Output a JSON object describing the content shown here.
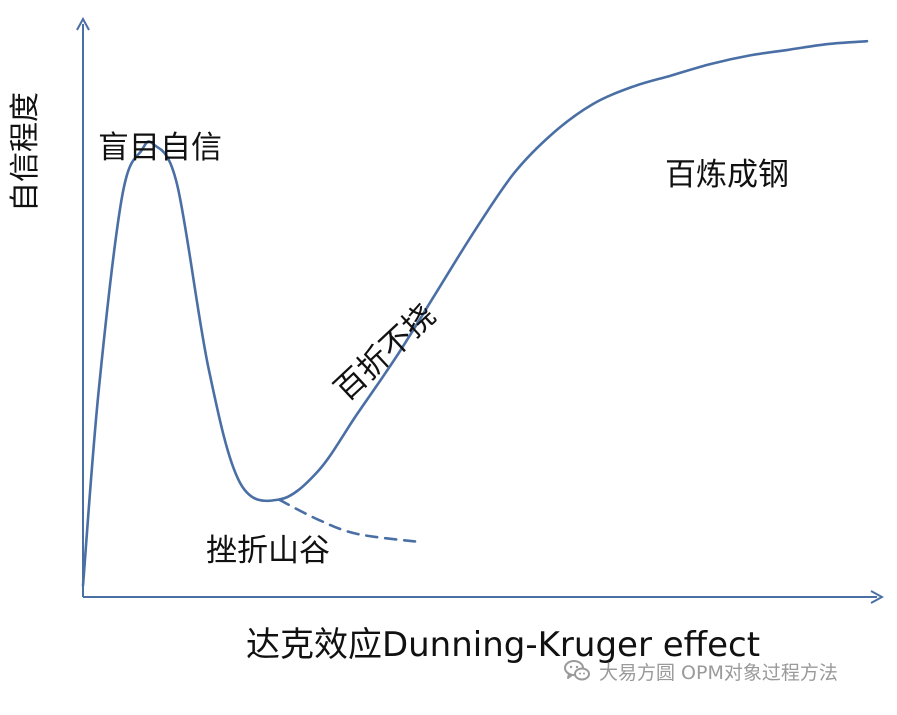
{
  "chart_data": {
    "type": "line",
    "title": "达克效应Dunning-Kruger effect",
    "ylabel": "自信程度",
    "xlabel": "",
    "grid": false,
    "annotations": {
      "peak": "盲目自信",
      "valley": "挫折山谷",
      "climb": "百折不挠",
      "plateau": "百炼成钢"
    },
    "series": [
      {
        "style": "solid",
        "color": "#4a6fa5",
        "x": [
          0,
          0.02,
          0.05,
          0.075,
          0.09,
          0.12,
          0.16,
          0.2,
          0.25,
          0.3,
          0.35,
          0.4,
          0.45,
          0.5,
          0.55,
          0.6,
          0.65,
          0.7,
          0.75,
          0.8,
          0.85,
          0.9,
          0.95,
          1.0
        ],
        "y": [
          0.02,
          0.36,
          0.7,
          0.78,
          0.79,
          0.72,
          0.4,
          0.2,
          0.17,
          0.22,
          0.32,
          0.42,
          0.53,
          0.64,
          0.74,
          0.81,
          0.86,
          0.89,
          0.91,
          0.93,
          0.945,
          0.955,
          0.965,
          0.97
        ]
      },
      {
        "style": "dashed",
        "color": "#4a6fa5",
        "x": [
          0.25,
          0.3,
          0.35,
          0.43
        ],
        "y": [
          0.17,
          0.135,
          0.11,
          0.096
        ]
      }
    ]
  },
  "watermark": {
    "icon": "wechat-icon",
    "text": "大易方圆 OPM对象过程方法"
  },
  "colors": {
    "axis": "#4a6fa5",
    "curve": "#4a6fa5",
    "text": "#111111",
    "watermark": "#9a9a9a"
  }
}
